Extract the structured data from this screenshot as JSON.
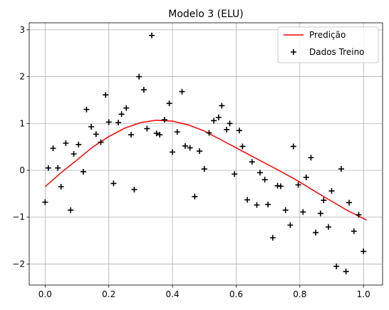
{
  "chart_data": {
    "type": "scatter",
    "title": "Modelo 3 (ELU)",
    "xlabel": "",
    "ylabel": "",
    "xlim": [
      -0.05,
      1.06
    ],
    "ylim": [
      -2.45,
      3.15
    ],
    "x_ticks": [
      0.0,
      0.2,
      0.4,
      0.6,
      0.8,
      1.0
    ],
    "x_tick_labels": [
      "0.0",
      "0.2",
      "0.4",
      "0.6",
      "0.8",
      "1.0"
    ],
    "y_ticks": [
      -2,
      -1,
      0,
      1,
      2,
      3
    ],
    "y_tick_labels": [
      "−2",
      "−1",
      "0",
      "1",
      "2",
      "3"
    ],
    "grid": true,
    "legend_position": "top-right",
    "colors": {
      "prediction": "#ff0000",
      "training": "#000000",
      "grid": "#b0b0b0",
      "axes": "#000000"
    },
    "series": [
      {
        "name": "Predição",
        "kind": "line",
        "x": [
          0.0,
          0.05,
          0.1,
          0.15,
          0.2,
          0.25,
          0.3,
          0.35,
          0.4,
          0.45,
          0.5,
          0.55,
          0.6,
          0.65,
          0.7,
          0.75,
          0.8,
          0.85,
          0.9,
          0.95,
          1.0,
          1.01
        ],
        "y": [
          -0.35,
          -0.05,
          0.22,
          0.5,
          0.72,
          0.9,
          1.02,
          1.07,
          1.05,
          0.97,
          0.84,
          0.66,
          0.48,
          0.3,
          0.12,
          -0.06,
          -0.25,
          -0.46,
          -0.66,
          -0.86,
          -1.03,
          -1.06
        ]
      },
      {
        "name": "Dados Treino",
        "kind": "scatter",
        "marker": "+",
        "x": [
          0.0,
          0.01,
          0.025,
          0.04,
          0.05,
          0.065,
          0.08,
          0.09,
          0.105,
          0.12,
          0.13,
          0.145,
          0.16,
          0.175,
          0.19,
          0.2,
          0.215,
          0.23,
          0.24,
          0.255,
          0.27,
          0.28,
          0.295,
          0.31,
          0.32,
          0.335,
          0.35,
          0.36,
          0.375,
          0.39,
          0.4,
          0.415,
          0.43,
          0.44,
          0.455,
          0.47,
          0.485,
          0.5,
          0.515,
          0.53,
          0.545,
          0.555,
          0.57,
          0.58,
          0.595,
          0.61,
          0.62,
          0.635,
          0.65,
          0.665,
          0.675,
          0.69,
          0.7,
          0.715,
          0.73,
          0.74,
          0.755,
          0.77,
          0.78,
          0.795,
          0.81,
          0.82,
          0.835,
          0.85,
          0.865,
          0.875,
          0.89,
          0.9,
          0.915,
          0.93,
          0.945,
          0.955,
          0.97,
          0.985,
          1.0
        ],
        "y": [
          -0.68,
          0.05,
          0.47,
          0.05,
          -0.35,
          0.58,
          -0.85,
          0.35,
          0.55,
          -0.03,
          1.3,
          0.93,
          0.77,
          0.6,
          1.61,
          1.03,
          -0.28,
          1.02,
          1.2,
          1.33,
          0.76,
          -0.41,
          2.0,
          1.72,
          0.89,
          2.88,
          0.79,
          0.76,
          1.08,
          1.43,
          0.39,
          0.82,
          1.68,
          0.52,
          0.48,
          -0.56,
          0.41,
          0.03,
          0.8,
          1.06,
          1.13,
          1.38,
          0.87,
          1.0,
          -0.08,
          0.85,
          0.51,
          -0.63,
          0.18,
          -0.74,
          -0.05,
          -0.2,
          -0.73,
          -1.44,
          -0.33,
          -0.34,
          -0.85,
          -1.17,
          0.51,
          -0.31,
          -0.89,
          -0.15,
          0.27,
          -1.33,
          -0.92,
          -0.64,
          -1.21,
          -0.44,
          -2.05,
          0.03,
          -2.16,
          -0.69,
          -1.3,
          -0.95,
          -1.73
        ]
      }
    ]
  }
}
